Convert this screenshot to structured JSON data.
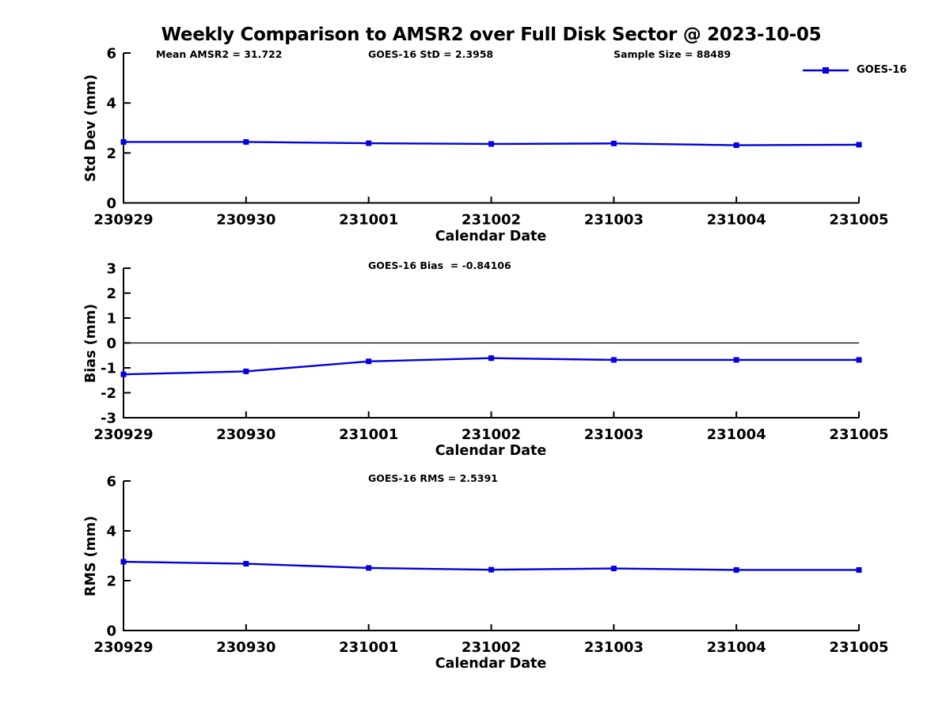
{
  "title": "Weekly Comparison to AMSR2 over Full Disk Sector @ 2023-10-05",
  "colors": {
    "line": "#0000e0",
    "axis": "#000000",
    "text": "#000000"
  },
  "legend": {
    "label": "GOES-16"
  },
  "chart_data": [
    {
      "type": "line",
      "series_name": "GOES-16",
      "annotations": [
        "Mean AMSR2 = 31.722",
        "GOES-16 StD = 2.3958",
        "Sample Size = 88489"
      ],
      "xlabel": "Calendar Date",
      "ylabel": "Std Dev (mm)",
      "categories": [
        "230929",
        "230930",
        "231001",
        "231002",
        "231003",
        "231004",
        "231005"
      ],
      "values": [
        2.44,
        2.44,
        2.39,
        2.36,
        2.38,
        2.31,
        2.33
      ],
      "ylim": [
        0,
        6
      ],
      "yticks": [
        0,
        2,
        4,
        6
      ],
      "grid": false,
      "zero_line": false,
      "legend_position": "top-right",
      "marker": "square"
    },
    {
      "type": "line",
      "series_name": "GOES-16",
      "annotations": [
        "GOES-16 Bias  = -0.84106"
      ],
      "xlabel": "Calendar Date",
      "ylabel": "Bias (mm)",
      "categories": [
        "230929",
        "230930",
        "231001",
        "231002",
        "231003",
        "231004",
        "231005"
      ],
      "values": [
        -1.26,
        -1.14,
        -0.74,
        -0.61,
        -0.68,
        -0.68,
        -0.68
      ],
      "ylim": [
        -3,
        3
      ],
      "yticks": [
        3,
        2,
        1,
        0,
        -1,
        -2,
        -3
      ],
      "grid": false,
      "zero_line": true,
      "marker": "square"
    },
    {
      "type": "line",
      "series_name": "GOES-16",
      "annotations": [
        "GOES-16 RMS = 2.5391"
      ],
      "xlabel": "Calendar Date",
      "ylabel": "RMS (mm)",
      "categories": [
        "230929",
        "230930",
        "231001",
        "231002",
        "231003",
        "231004",
        "231005"
      ],
      "values": [
        2.76,
        2.68,
        2.51,
        2.44,
        2.49,
        2.43,
        2.43
      ],
      "ylim": [
        0,
        6
      ],
      "yticks": [
        0,
        2,
        4,
        6
      ],
      "grid": false,
      "zero_line": false,
      "marker": "square"
    }
  ]
}
